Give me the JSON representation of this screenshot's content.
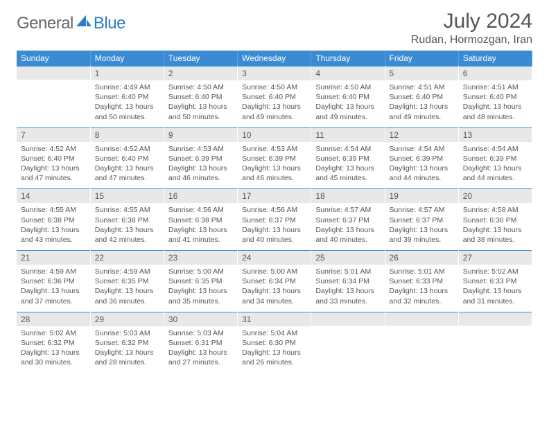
{
  "brand": {
    "part1": "General",
    "part2": "Blue",
    "part1_color": "#666666",
    "part2_color": "#2d7cc7"
  },
  "header": {
    "month": "July 2024",
    "location": "Rudan, Hormozgan, Iran"
  },
  "colors": {
    "header_blue": "#3b8bd4",
    "daynum_bg": "#e8e8e8",
    "rule": "#3b8bd4",
    "text": "#333333"
  },
  "dayNames": [
    "Sunday",
    "Monday",
    "Tuesday",
    "Wednesday",
    "Thursday",
    "Friday",
    "Saturday"
  ],
  "weeks": [
    [
      null,
      {
        "n": "1",
        "sr": "Sunrise: 4:49 AM",
        "ss": "Sunset: 6:40 PM",
        "dl": "Daylight: 13 hours and 50 minutes."
      },
      {
        "n": "2",
        "sr": "Sunrise: 4:50 AM",
        "ss": "Sunset: 6:40 PM",
        "dl": "Daylight: 13 hours and 50 minutes."
      },
      {
        "n": "3",
        "sr": "Sunrise: 4:50 AM",
        "ss": "Sunset: 6:40 PM",
        "dl": "Daylight: 13 hours and 49 minutes."
      },
      {
        "n": "4",
        "sr": "Sunrise: 4:50 AM",
        "ss": "Sunset: 6:40 PM",
        "dl": "Daylight: 13 hours and 49 minutes."
      },
      {
        "n": "5",
        "sr": "Sunrise: 4:51 AM",
        "ss": "Sunset: 6:40 PM",
        "dl": "Daylight: 13 hours and 49 minutes."
      },
      {
        "n": "6",
        "sr": "Sunrise: 4:51 AM",
        "ss": "Sunset: 6:40 PM",
        "dl": "Daylight: 13 hours and 48 minutes."
      }
    ],
    [
      {
        "n": "7",
        "sr": "Sunrise: 4:52 AM",
        "ss": "Sunset: 6:40 PM",
        "dl": "Daylight: 13 hours and 47 minutes."
      },
      {
        "n": "8",
        "sr": "Sunrise: 4:52 AM",
        "ss": "Sunset: 6:40 PM",
        "dl": "Daylight: 13 hours and 47 minutes."
      },
      {
        "n": "9",
        "sr": "Sunrise: 4:53 AM",
        "ss": "Sunset: 6:39 PM",
        "dl": "Daylight: 13 hours and 46 minutes."
      },
      {
        "n": "10",
        "sr": "Sunrise: 4:53 AM",
        "ss": "Sunset: 6:39 PM",
        "dl": "Daylight: 13 hours and 46 minutes."
      },
      {
        "n": "11",
        "sr": "Sunrise: 4:54 AM",
        "ss": "Sunset: 6:39 PM",
        "dl": "Daylight: 13 hours and 45 minutes."
      },
      {
        "n": "12",
        "sr": "Sunrise: 4:54 AM",
        "ss": "Sunset: 6:39 PM",
        "dl": "Daylight: 13 hours and 44 minutes."
      },
      {
        "n": "13",
        "sr": "Sunrise: 4:54 AM",
        "ss": "Sunset: 6:39 PM",
        "dl": "Daylight: 13 hours and 44 minutes."
      }
    ],
    [
      {
        "n": "14",
        "sr": "Sunrise: 4:55 AM",
        "ss": "Sunset: 6:38 PM",
        "dl": "Daylight: 13 hours and 43 minutes."
      },
      {
        "n": "15",
        "sr": "Sunrise: 4:55 AM",
        "ss": "Sunset: 6:38 PM",
        "dl": "Daylight: 13 hours and 42 minutes."
      },
      {
        "n": "16",
        "sr": "Sunrise: 4:56 AM",
        "ss": "Sunset: 6:38 PM",
        "dl": "Daylight: 13 hours and 41 minutes."
      },
      {
        "n": "17",
        "sr": "Sunrise: 4:56 AM",
        "ss": "Sunset: 6:37 PM",
        "dl": "Daylight: 13 hours and 40 minutes."
      },
      {
        "n": "18",
        "sr": "Sunrise: 4:57 AM",
        "ss": "Sunset: 6:37 PM",
        "dl": "Daylight: 13 hours and 40 minutes."
      },
      {
        "n": "19",
        "sr": "Sunrise: 4:57 AM",
        "ss": "Sunset: 6:37 PM",
        "dl": "Daylight: 13 hours and 39 minutes."
      },
      {
        "n": "20",
        "sr": "Sunrise: 4:58 AM",
        "ss": "Sunset: 6:36 PM",
        "dl": "Daylight: 13 hours and 38 minutes."
      }
    ],
    [
      {
        "n": "21",
        "sr": "Sunrise: 4:59 AM",
        "ss": "Sunset: 6:36 PM",
        "dl": "Daylight: 13 hours and 37 minutes."
      },
      {
        "n": "22",
        "sr": "Sunrise: 4:59 AM",
        "ss": "Sunset: 6:35 PM",
        "dl": "Daylight: 13 hours and 36 minutes."
      },
      {
        "n": "23",
        "sr": "Sunrise: 5:00 AM",
        "ss": "Sunset: 6:35 PM",
        "dl": "Daylight: 13 hours and 35 minutes."
      },
      {
        "n": "24",
        "sr": "Sunrise: 5:00 AM",
        "ss": "Sunset: 6:34 PM",
        "dl": "Daylight: 13 hours and 34 minutes."
      },
      {
        "n": "25",
        "sr": "Sunrise: 5:01 AM",
        "ss": "Sunset: 6:34 PM",
        "dl": "Daylight: 13 hours and 33 minutes."
      },
      {
        "n": "26",
        "sr": "Sunrise: 5:01 AM",
        "ss": "Sunset: 6:33 PM",
        "dl": "Daylight: 13 hours and 32 minutes."
      },
      {
        "n": "27",
        "sr": "Sunrise: 5:02 AM",
        "ss": "Sunset: 6:33 PM",
        "dl": "Daylight: 13 hours and 31 minutes."
      }
    ],
    [
      {
        "n": "28",
        "sr": "Sunrise: 5:02 AM",
        "ss": "Sunset: 6:32 PM",
        "dl": "Daylight: 13 hours and 30 minutes."
      },
      {
        "n": "29",
        "sr": "Sunrise: 5:03 AM",
        "ss": "Sunset: 6:32 PM",
        "dl": "Daylight: 13 hours and 28 minutes."
      },
      {
        "n": "30",
        "sr": "Sunrise: 5:03 AM",
        "ss": "Sunset: 6:31 PM",
        "dl": "Daylight: 13 hours and 27 minutes."
      },
      {
        "n": "31",
        "sr": "Sunrise: 5:04 AM",
        "ss": "Sunset: 6:30 PM",
        "dl": "Daylight: 13 hours and 26 minutes."
      },
      null,
      null,
      null
    ]
  ]
}
